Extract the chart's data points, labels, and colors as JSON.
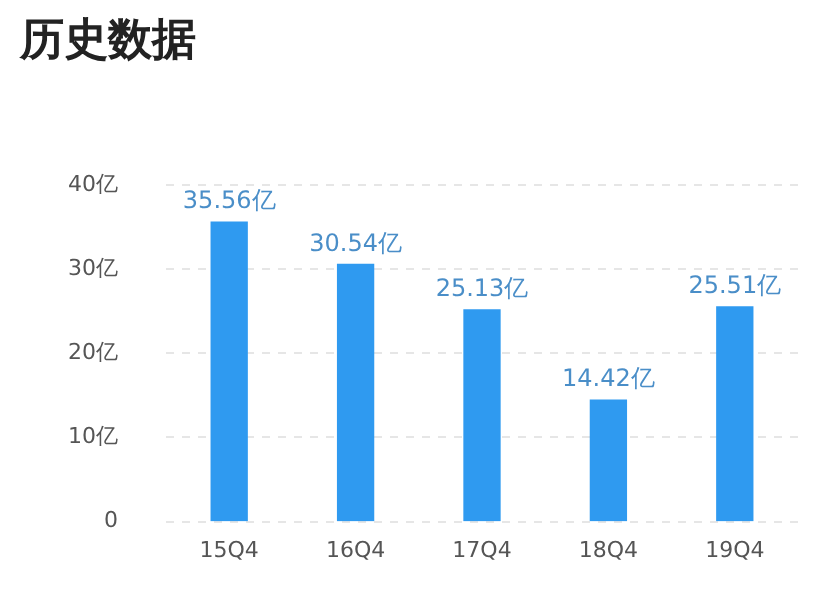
{
  "chart_data": {
    "type": "bar",
    "title": "历史数据",
    "categories": [
      "15Q4",
      "16Q4",
      "17Q4",
      "18Q4",
      "19Q4"
    ],
    "values": [
      35.56,
      30.54,
      25.13,
      14.42,
      25.51
    ],
    "value_labels": [
      "35.56亿",
      "30.54亿",
      "25.13亿",
      "14.42亿",
      "25.51亿"
    ],
    "color": "#2f9af0",
    "ylim": [
      0,
      40
    ],
    "yticks": [
      {
        "value": 0,
        "label": "0"
      },
      {
        "value": 10,
        "label": "10亿"
      },
      {
        "value": 20,
        "label": "20亿"
      },
      {
        "value": 30,
        "label": "30亿"
      },
      {
        "value": 40,
        "label": "40亿"
      }
    ],
    "grid": "y"
  }
}
